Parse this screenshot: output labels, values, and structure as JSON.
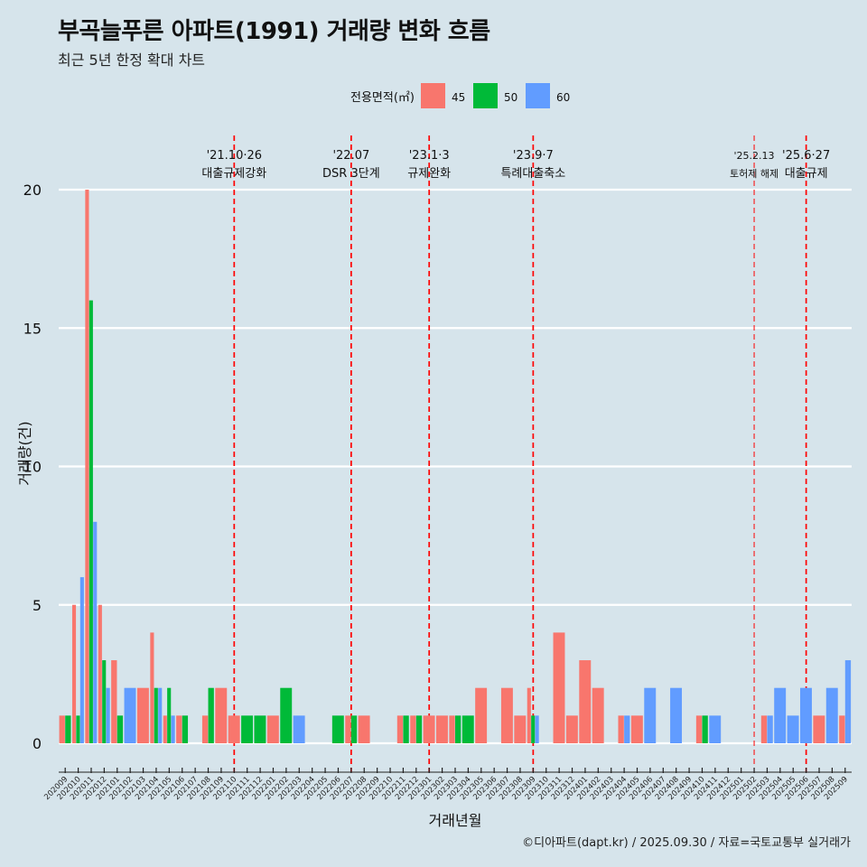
{
  "title": "부곡늘푸른 아파트(1991) 거래량 변화 흐름",
  "subtitle": "최근 5년 한정 확대 차트",
  "caption": "©디아파트(dapt.kr) / 2025.09.30 / 자료=국토교통부 실거래가",
  "colors": {
    "s45": "#f8766d",
    "s50": "#00ba38",
    "s60": "#619cff",
    "grid": "#ffffff",
    "marker": "#ff0000"
  },
  "chart_data": {
    "type": "bar",
    "title": "부곡늘푸른 아파트(1991) 거래량 변화 흐름",
    "xlabel": "거래년월",
    "ylabel": "거래량(건)",
    "ylim": [
      0,
      21.5
    ],
    "yticks": [
      0,
      5,
      10,
      15,
      20
    ],
    "grid": true,
    "legend": {
      "title": "전용면적(㎡)",
      "position": "top"
    },
    "categories": [
      "202009",
      "202010",
      "202011",
      "202012",
      "202101",
      "202102",
      "202103",
      "202104",
      "202105",
      "202106",
      "202107",
      "202108",
      "202109",
      "202110",
      "202111",
      "202112",
      "202201",
      "202202",
      "202203",
      "202204",
      "202205",
      "202206",
      "202207",
      "202208",
      "202209",
      "202210",
      "202211",
      "202212",
      "202301",
      "202302",
      "202303",
      "202304",
      "202305",
      "202306",
      "202307",
      "202308",
      "202309",
      "202310",
      "202311",
      "202312",
      "202401",
      "202402",
      "202403",
      "202404",
      "202405",
      "202406",
      "202407",
      "202408",
      "202409",
      "202410",
      "202411",
      "202412",
      "202501",
      "202502",
      "202503",
      "202504",
      "202505",
      "202506",
      "202507",
      "202508",
      "202509"
    ],
    "series": [
      {
        "name": "45",
        "values": [
          1,
          5,
          20,
          5,
          3,
          0,
          2,
          4,
          1,
          1,
          0,
          1,
          2,
          1,
          0,
          0,
          1,
          0,
          0,
          0,
          0,
          0,
          1,
          1,
          0,
          0,
          1,
          1,
          1,
          1,
          1,
          0,
          2,
          0,
          2,
          1,
          2,
          0,
          4,
          1,
          3,
          2,
          0,
          1,
          1,
          0,
          0,
          0,
          0,
          1,
          0,
          0,
          0,
          0,
          1,
          0,
          0,
          0,
          1,
          0,
          1
        ]
      },
      {
        "name": "50",
        "values": [
          1,
          1,
          16,
          3,
          1,
          0,
          0,
          2,
          2,
          1,
          0,
          2,
          0,
          0,
          1,
          1,
          0,
          2,
          0,
          0,
          0,
          1,
          1,
          0,
          0,
          0,
          1,
          1,
          0,
          0,
          1,
          1,
          0,
          0,
          0,
          0,
          1,
          0,
          0,
          0,
          0,
          0,
          0,
          0,
          0,
          0,
          0,
          0,
          0,
          1,
          0,
          0,
          0,
          0,
          0,
          0,
          0,
          0,
          0,
          0,
          0
        ]
      },
      {
        "name": "60",
        "values": [
          0,
          6,
          8,
          2,
          0,
          2,
          0,
          2,
          1,
          0,
          0,
          0,
          0,
          0,
          0,
          0,
          0,
          0,
          1,
          0,
          0,
          0,
          0,
          0,
          0,
          0,
          0,
          0,
          0,
          0,
          0,
          0,
          0,
          0,
          0,
          0,
          1,
          0,
          0,
          0,
          0,
          0,
          0,
          1,
          0,
          2,
          0,
          2,
          0,
          0,
          1,
          0,
          0,
          0,
          1,
          2,
          1,
          2,
          0,
          2,
          3
        ]
      }
    ],
    "annotations": [
      {
        "category": "202110",
        "date": "'21.10·26",
        "label": "대출규제강화"
      },
      {
        "category": "202207",
        "date": "'22.07",
        "label": "DSR 3단계"
      },
      {
        "category": "202301",
        "date": "'23.1·3",
        "label": "규제완화"
      },
      {
        "category": "202309",
        "date": "'23.9·7",
        "label": "특례대출축소"
      },
      {
        "category": "202502",
        "date": "'25.2.13",
        "label": "토허제 해제"
      },
      {
        "category": "202506",
        "date": "'25.6·27",
        "label": "대출규제"
      }
    ]
  }
}
